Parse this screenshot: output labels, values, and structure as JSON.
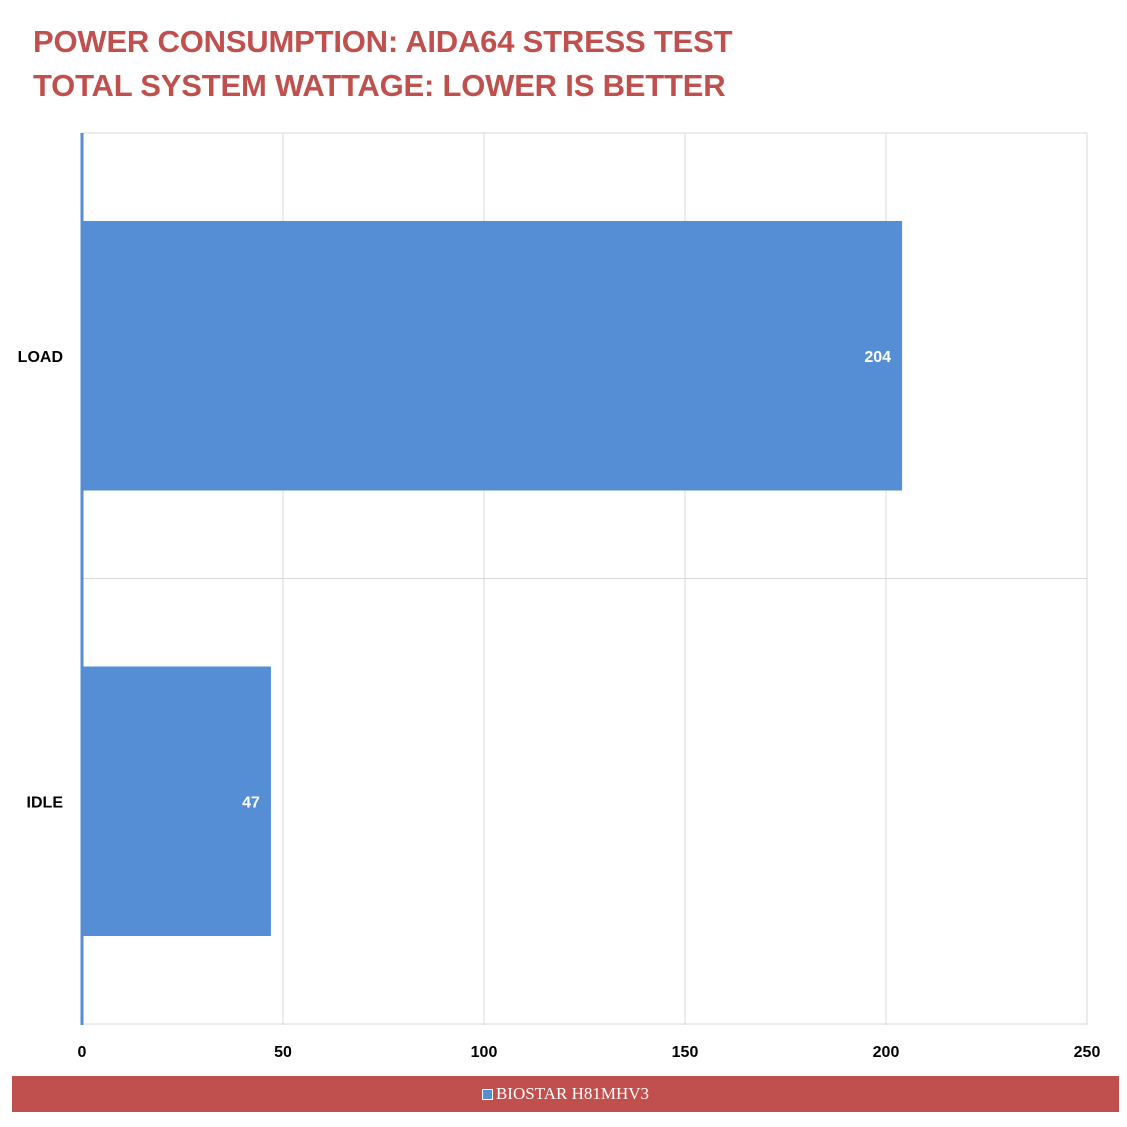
{
  "chart_data": {
    "type": "bar",
    "orientation": "horizontal",
    "title": "POWER CONSUMPTION: AIDA64 STRESS TEST",
    "subtitle": "TOTAL SYSTEM WATTAGE: LOWER IS BETTER",
    "xlabel": "",
    "ylabel": "",
    "categories": [
      "LOAD",
      "IDLE"
    ],
    "series": [
      {
        "name": "BIOSTAR H81MHV3",
        "values": [
          204,
          47
        ]
      }
    ],
    "xlim": [
      0,
      250
    ],
    "x_ticks": [
      0,
      50,
      100,
      150,
      200,
      250
    ],
    "data_labels": true,
    "grid": true,
    "legend": "bottom",
    "colors": {
      "bar": "#558ed5",
      "title": "#c0504d",
      "legend_background": "#c0504d",
      "grid": "#d9d9d9"
    }
  }
}
